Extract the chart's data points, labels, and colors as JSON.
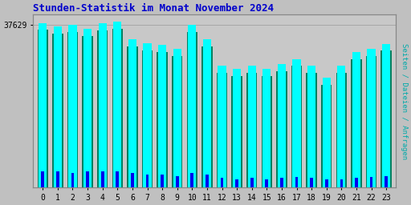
{
  "title": "Stunden-Statistik im Monat November 2024",
  "ylabel_right": "Seiten / Dateien / Anfragen",
  "ytick_label": "37629",
  "hours": [
    0,
    1,
    2,
    3,
    4,
    5,
    6,
    7,
    8,
    9,
    10,
    11,
    12,
    13,
    14,
    15,
    16,
    17,
    18,
    19,
    20,
    21,
    22,
    23
  ],
  "seiten": [
    0.97,
    0.952,
    0.96,
    0.935,
    0.97,
    0.98,
    0.875,
    0.85,
    0.84,
    0.82,
    0.96,
    0.875,
    0.72,
    0.698,
    0.718,
    0.698,
    0.73,
    0.758,
    0.718,
    0.648,
    0.718,
    0.8,
    0.82,
    0.848
  ],
  "dateien": [
    0.93,
    0.91,
    0.918,
    0.893,
    0.928,
    0.938,
    0.833,
    0.808,
    0.798,
    0.778,
    0.918,
    0.833,
    0.678,
    0.658,
    0.678,
    0.658,
    0.688,
    0.718,
    0.678,
    0.608,
    0.678,
    0.758,
    0.778,
    0.808
  ],
  "anfragen": [
    0.095,
    0.095,
    0.088,
    0.095,
    0.095,
    0.095,
    0.085,
    0.078,
    0.075,
    0.068,
    0.088,
    0.078,
    0.058,
    0.05,
    0.058,
    0.05,
    0.058,
    0.06,
    0.058,
    0.048,
    0.048,
    0.058,
    0.06,
    0.068
  ],
  "color_seiten": "#00ffff",
  "color_dateien": "#008060",
  "color_anfragen": "#0000ee",
  "bg_color": "#c0c0c0",
  "plot_bg": "#c8c8c8",
  "title_color": "#0000cc",
  "ylabel_color": "#00aaaa",
  "ylim_max": 1.02
}
